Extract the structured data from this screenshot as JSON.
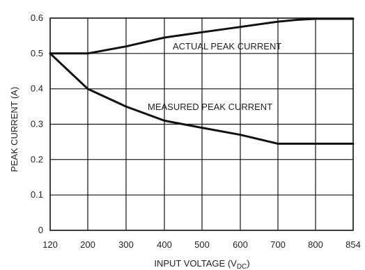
{
  "chart_data": {
    "type": "line",
    "title": "",
    "xlabel_main": "INPUT VOLTAGE (V",
    "xlabel_sub": "DC",
    "xlabel_close": ")",
    "ylabel": "PEAK CURRENT (A)",
    "x_ticks": [
      120,
      200,
      300,
      400,
      500,
      600,
      700,
      800,
      854
    ],
    "y_ticks": [
      0,
      0.1,
      0.2,
      0.3,
      0.4,
      0.5,
      0.6
    ],
    "y_tick_labels": [
      "0",
      "0.1",
      "0.2",
      "0.3",
      "0.4",
      "0.5",
      "0.6"
    ],
    "ylim": [
      0,
      0.6
    ],
    "grid": true,
    "series": [
      {
        "name": "ACTUAL PEAK CURRENT",
        "color": "#111111",
        "x": [
          120,
          200,
          300,
          400,
          500,
          600,
          700,
          750,
          800,
          854
        ],
        "y": [
          0.5,
          0.5,
          0.52,
          0.545,
          0.56,
          0.575,
          0.59,
          0.595,
          0.598,
          0.598
        ]
      },
      {
        "name": "MEASURED PEAK CURRENT",
        "color": "#111111",
        "x": [
          120,
          200,
          300,
          400,
          500,
          600,
          700,
          750,
          800,
          854
        ],
        "y": [
          0.5,
          0.4,
          0.35,
          0.31,
          0.29,
          0.27,
          0.245,
          0.245,
          0.245,
          0.245
        ]
      }
    ]
  }
}
